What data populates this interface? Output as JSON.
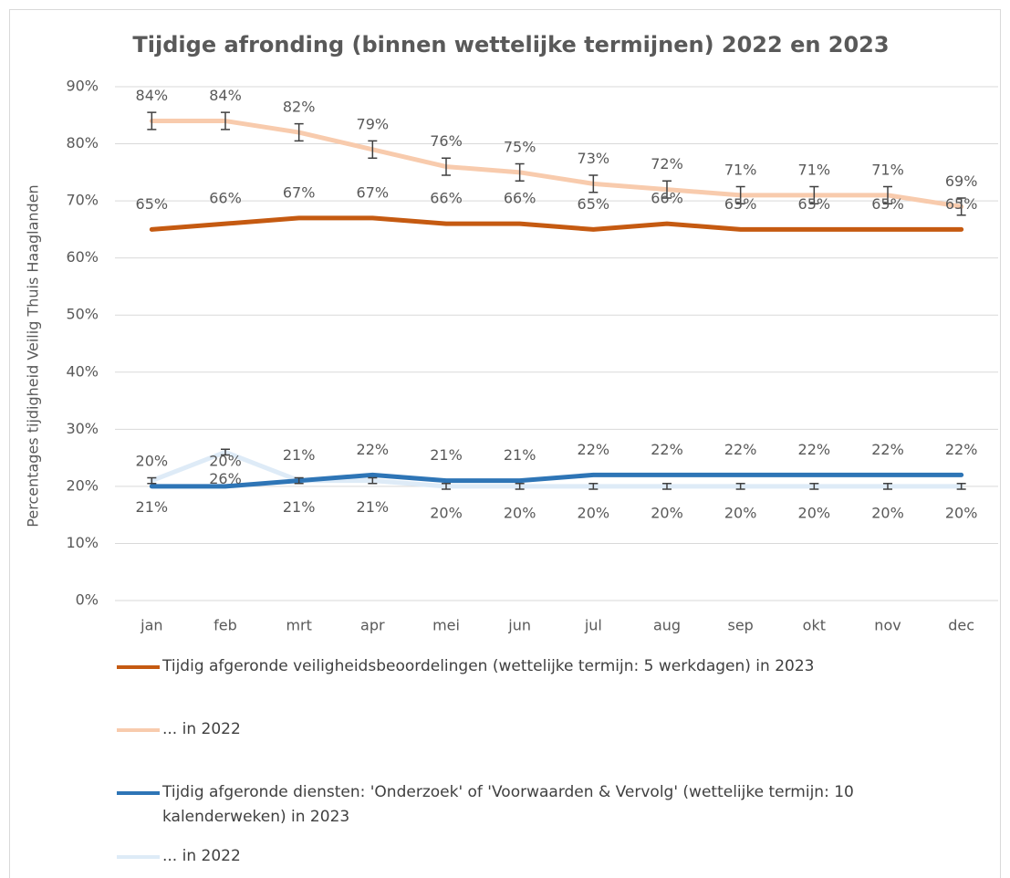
{
  "chart_data": {
    "type": "line",
    "title": "Tijdige afronding (binnen wettelijke termijnen) 2022 en 2023",
    "y_label": "Percentages tijdigheid Veilig Thuis Haaglanden",
    "categories": [
      "jan",
      "feb",
      "mrt",
      "apr",
      "mei",
      "jun",
      "jul",
      "aug",
      "sep",
      "okt",
      "nov",
      "dec"
    ],
    "ylim": [
      0,
      90
    ],
    "yticks": [
      {
        "value": 0,
        "label": "0%"
      },
      {
        "value": 10,
        "label": "10%"
      },
      {
        "value": 20,
        "label": "20%"
      },
      {
        "value": 30,
        "label": "30%"
      },
      {
        "value": 40,
        "label": "40%"
      },
      {
        "value": 50,
        "label": "50%"
      },
      {
        "value": 60,
        "label": "60%"
      },
      {
        "value": 70,
        "label": "70%"
      },
      {
        "value": 80,
        "label": "80%"
      },
      {
        "value": 90,
        "label": "90%"
      }
    ],
    "grid": true,
    "legend": "bottom",
    "series": [
      {
        "name": "Tijdig afgeronde veiligheidsbeoordelingen (wettelijke termijn: 5 werkdagen) in 2023",
        "color": "#c55a11",
        "values": [
          65,
          66,
          67,
          67,
          66,
          66,
          65,
          66,
          65,
          65,
          65,
          65
        ],
        "value_labels": [
          "65%",
          "66%",
          "67%",
          "67%",
          "66%",
          "66%",
          "65%",
          "66%",
          "65%",
          "65%",
          "65%",
          "65%"
        ]
      },
      {
        "name": "... in 2022",
        "color": "#f8cbad",
        "values": [
          84,
          84,
          82,
          79,
          76,
          75,
          73,
          72,
          71,
          71,
          71,
          69
        ],
        "errors": [
          1.5,
          1.5,
          1.5,
          1.5,
          1.5,
          1.5,
          1.5,
          1.5,
          1.5,
          1.5,
          1.5,
          1.5
        ],
        "value_labels": [
          "84%",
          "84%",
          "82%",
          "79%",
          "76%",
          "75%",
          "73%",
          "72%",
          "71%",
          "71%",
          "71%",
          "69%"
        ]
      },
      {
        "name": "Tijdig afgeronde diensten: 'Onderzoek' of 'Voorwaarden & Vervolg' (wettelijke termijn: 10 kalenderweken) in 2023",
        "color": "#2e75b6",
        "values": [
          20,
          20,
          21,
          22,
          21,
          21,
          22,
          22,
          22,
          22,
          22,
          22
        ],
        "value_labels": [
          "20%",
          "20%",
          "21%",
          "22%",
          "21%",
          "21%",
          "22%",
          "22%",
          "22%",
          "22%",
          "22%",
          "22%"
        ]
      },
      {
        "name": "... in 2022",
        "color": "#deebf7",
        "values": [
          21,
          26,
          21,
          21,
          20,
          20,
          20,
          20,
          20,
          20,
          20,
          20
        ],
        "errors": [
          0.5,
          0.5,
          0.5,
          0.5,
          0.5,
          0.5,
          0.5,
          0.5,
          0.5,
          0.5,
          0.5,
          0.5
        ],
        "value_labels": [
          "21%",
          "26%",
          "21%",
          "21%",
          "20%",
          "20%",
          "20%",
          "20%",
          "20%",
          "20%",
          "20%",
          "20%"
        ]
      }
    ]
  }
}
